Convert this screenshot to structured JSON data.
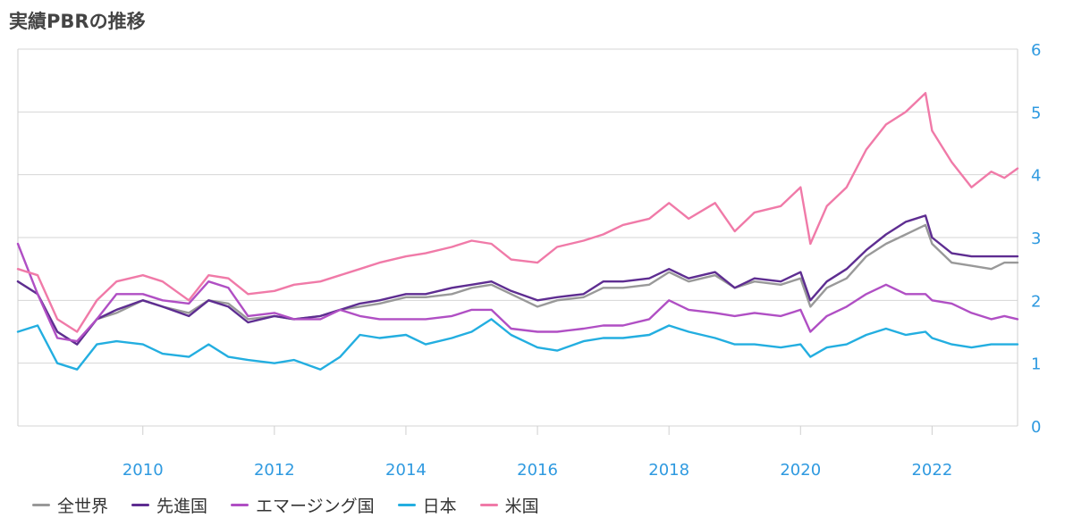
{
  "title": "実績PBRの推移",
  "chart_data": {
    "type": "line",
    "title": "実績PBRの推移",
    "xlabel": "",
    "ylabel": "",
    "xlim": [
      2008.1,
      2023.3
    ],
    "ylim": [
      0,
      6
    ],
    "y_ticks": [
      "0",
      "1",
      "2",
      "3",
      "4",
      "5",
      "6"
    ],
    "x_ticks": [
      "2010",
      "2012",
      "2014",
      "2016",
      "2018",
      "2020",
      "2022"
    ],
    "grid": true,
    "y_axis_position": "right",
    "legend_position": "bottom-left",
    "x": [
      2008.1,
      2008.4,
      2008.7,
      2009.0,
      2009.3,
      2009.6,
      2010.0,
      2010.3,
      2010.7,
      2011.0,
      2011.3,
      2011.6,
      2012.0,
      2012.3,
      2012.7,
      2013.0,
      2013.3,
      2013.6,
      2014.0,
      2014.3,
      2014.7,
      2015.0,
      2015.3,
      2015.6,
      2016.0,
      2016.3,
      2016.7,
      2017.0,
      2017.3,
      2017.7,
      2018.0,
      2018.3,
      2018.7,
      2019.0,
      2019.3,
      2019.7,
      2020.0,
      2020.15,
      2020.4,
      2020.7,
      2021.0,
      2021.3,
      2021.6,
      2021.9,
      2022.0,
      2022.3,
      2022.6,
      2022.9,
      2023.1,
      2023.3
    ],
    "series": [
      {
        "name": "全世界",
        "color": "#999999",
        "values": [
          2.3,
          2.1,
          1.5,
          1.3,
          1.7,
          1.8,
          2.0,
          1.9,
          1.8,
          2.0,
          1.95,
          1.7,
          1.75,
          1.7,
          1.75,
          1.85,
          1.9,
          1.95,
          2.05,
          2.05,
          2.1,
          2.2,
          2.25,
          2.1,
          1.9,
          2.0,
          2.05,
          2.2,
          2.2,
          2.25,
          2.45,
          2.3,
          2.4,
          2.2,
          2.3,
          2.25,
          2.35,
          1.9,
          2.2,
          2.35,
          2.7,
          2.9,
          3.05,
          3.2,
          2.9,
          2.6,
          2.55,
          2.5,
          2.6,
          2.6
        ]
      },
      {
        "name": "先進国",
        "color": "#5e2d91",
        "values": [
          2.3,
          2.1,
          1.5,
          1.3,
          1.7,
          1.85,
          2.0,
          1.9,
          1.75,
          2.0,
          1.9,
          1.65,
          1.75,
          1.7,
          1.75,
          1.85,
          1.95,
          2.0,
          2.1,
          2.1,
          2.2,
          2.25,
          2.3,
          2.15,
          2.0,
          2.05,
          2.1,
          2.3,
          2.3,
          2.35,
          2.5,
          2.35,
          2.45,
          2.2,
          2.35,
          2.3,
          2.45,
          2.0,
          2.3,
          2.5,
          2.8,
          3.05,
          3.25,
          3.35,
          3.0,
          2.75,
          2.7,
          2.7,
          2.7,
          2.7
        ]
      },
      {
        "name": "エマージング国",
        "color": "#b04fc4",
        "values": [
          2.9,
          2.1,
          1.4,
          1.35,
          1.7,
          2.1,
          2.1,
          2.0,
          1.95,
          2.3,
          2.2,
          1.75,
          1.8,
          1.7,
          1.7,
          1.85,
          1.75,
          1.7,
          1.7,
          1.7,
          1.75,
          1.85,
          1.85,
          1.55,
          1.5,
          1.5,
          1.55,
          1.6,
          1.6,
          1.7,
          2.0,
          1.85,
          1.8,
          1.75,
          1.8,
          1.75,
          1.85,
          1.5,
          1.75,
          1.9,
          2.1,
          2.25,
          2.1,
          2.1,
          2.0,
          1.95,
          1.8,
          1.7,
          1.75,
          1.7
        ]
      },
      {
        "name": "日本",
        "color": "#23aee0",
        "values": [
          1.5,
          1.6,
          1.0,
          0.9,
          1.3,
          1.35,
          1.3,
          1.15,
          1.1,
          1.3,
          1.1,
          1.05,
          1.0,
          1.05,
          0.9,
          1.1,
          1.45,
          1.4,
          1.45,
          1.3,
          1.4,
          1.5,
          1.7,
          1.45,
          1.25,
          1.2,
          1.35,
          1.4,
          1.4,
          1.45,
          1.6,
          1.5,
          1.4,
          1.3,
          1.3,
          1.25,
          1.3,
          1.1,
          1.25,
          1.3,
          1.45,
          1.55,
          1.45,
          1.5,
          1.4,
          1.3,
          1.25,
          1.3,
          1.3,
          1.3
        ]
      },
      {
        "name": "米国",
        "color": "#f07aa8",
        "values": [
          2.5,
          2.4,
          1.7,
          1.5,
          2.0,
          2.3,
          2.4,
          2.3,
          2.0,
          2.4,
          2.35,
          2.1,
          2.15,
          2.25,
          2.3,
          2.4,
          2.5,
          2.6,
          2.7,
          2.75,
          2.85,
          2.95,
          2.9,
          2.65,
          2.6,
          2.85,
          2.95,
          3.05,
          3.2,
          3.3,
          3.55,
          3.3,
          3.55,
          3.1,
          3.4,
          3.5,
          3.8,
          2.9,
          3.5,
          3.8,
          4.4,
          4.8,
          5.0,
          5.3,
          4.7,
          4.2,
          3.8,
          4.05,
          3.95,
          4.1
        ]
      }
    ]
  }
}
